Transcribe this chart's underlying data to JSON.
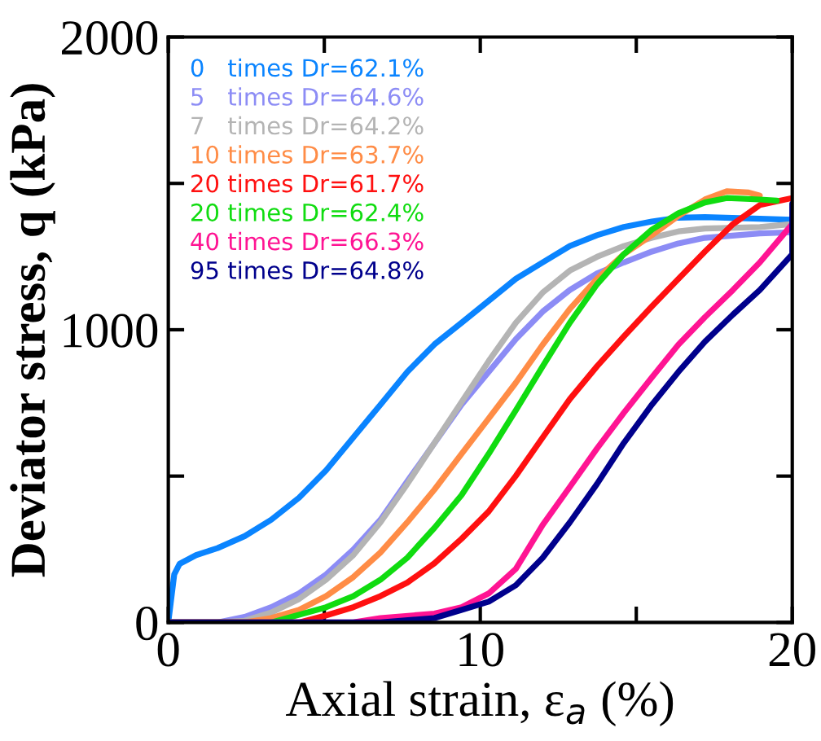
{
  "chart_data": {
    "type": "line",
    "xlabel": "Axial strain, ε$_{a}$ (%)",
    "ylabel": "Deviator stress, q (kPa)",
    "xlim": [
      0,
      20
    ],
    "ylim": [
      0,
      2000
    ],
    "xticks": [
      0,
      {
        "value": 5,
        "label": null
      },
      10,
      {
        "value": 15,
        "label": null
      },
      20
    ],
    "yticks": [
      0,
      {
        "value": 500,
        "label": null
      },
      1000,
      {
        "value": 1500,
        "label": null
      },
      2000
    ],
    "grid": false,
    "legend": "top left",
    "marker": "none",
    "line_style": "solid",
    "series": [
      {
        "name": "0   times Dr=62.1%",
        "color": "#0a84ff",
        "x": [
          0,
          0.19,
          0.36,
          0.89,
          1.58,
          2.45,
          3.3,
          4.19,
          5.06,
          5.93,
          6.8,
          7.66,
          8.53,
          9.4,
          10.27,
          11.14,
          12.0,
          12.87,
          13.74,
          14.6,
          15.5,
          16.35,
          17.2,
          18.96,
          20
        ],
        "values": [
          0,
          164,
          200,
          230,
          254,
          295,
          351,
          426,
          520,
          632,
          744,
          856,
          950,
          1024,
          1099,
          1174,
          1230,
          1286,
          1323,
          1351,
          1370,
          1383,
          1385,
          1379,
          1376
        ]
      },
      {
        "name": "5   times Dr=64.6%",
        "color": "#8c8cf5",
        "x": [
          0,
          1.6,
          2.45,
          3.3,
          4.19,
          5.06,
          5.93,
          6.8,
          7.66,
          8.53,
          9.4,
          10.27,
          11.14,
          12.0,
          12.87,
          13.74,
          14.6,
          15.5,
          16.35,
          17.2,
          18.96,
          20
        ],
        "values": [
          0,
          0,
          19,
          52,
          99,
          164,
          249,
          351,
          482,
          613,
          744,
          856,
          968,
          1062,
          1136,
          1192,
          1230,
          1267,
          1295,
          1314,
          1329,
          1333
        ]
      },
      {
        "name": "7   times Dr=64.2%",
        "color": "#b4b4b4",
        "x": [
          0,
          1.6,
          2.45,
          3.3,
          4.19,
          5.06,
          5.93,
          6.8,
          7.66,
          8.53,
          9.4,
          10.27,
          11.14,
          12.0,
          12.87,
          13.74,
          14.6,
          15.5,
          16.35,
          17.2,
          18.96,
          20
        ],
        "values": [
          0,
          0,
          6,
          34,
          80,
          146,
          230,
          342,
          473,
          613,
          753,
          893,
          1024,
          1127,
          1202,
          1249,
          1286,
          1314,
          1336,
          1346,
          1351,
          1361
        ]
      },
      {
        "name": "10 times Dr=63.7%",
        "color": "#ff8c46",
        "x": [
          0,
          2.45,
          3.3,
          4.19,
          5.06,
          5.93,
          6.8,
          7.66,
          8.53,
          9.4,
          10.27,
          11.14,
          12.0,
          12.87,
          13.74,
          14.6,
          15.5,
          16.35,
          17.2,
          17.9,
          18.6,
          18.96
        ],
        "values": [
          0,
          0,
          15,
          43,
          90,
          155,
          239,
          342,
          454,
          576,
          697,
          819,
          949,
          1071,
          1174,
          1258,
          1323,
          1389,
          1445,
          1473,
          1469,
          1458
        ]
      },
      {
        "name": "20 times Dr=61.7%",
        "color": "#ff1010",
        "x": [
          0,
          4.19,
          5.06,
          5.93,
          6.8,
          7.66,
          8.53,
          9.4,
          10.27,
          11.14,
          12.0,
          12.87,
          13.74,
          14.6,
          15.5,
          16.35,
          17.2,
          18.1,
          18.96,
          20
        ],
        "values": [
          0,
          0,
          24,
          52,
          90,
          136,
          202,
          286,
          379,
          501,
          632,
          763,
          875,
          977,
          1080,
          1174,
          1267,
          1361,
          1426,
          1450
        ]
      },
      {
        "name": "20 times Dr=62.4%",
        "color": "#10dc10",
        "x": [
          0,
          3.3,
          5.06,
          5.93,
          6.8,
          7.66,
          8.53,
          9.4,
          10.27,
          11.14,
          12.0,
          12.87,
          13.74,
          14.6,
          15.5,
          16.35,
          17.2,
          17.9,
          18.96,
          19.5
        ],
        "values": [
          0,
          0,
          52,
          90,
          146,
          221,
          323,
          435,
          576,
          725,
          875,
          1024,
          1155,
          1258,
          1342,
          1398,
          1435,
          1450,
          1445,
          1441
        ]
      },
      {
        "name": "40 times Dr=66.3%",
        "color": "#ff1493",
        "x": [
          0,
          5.93,
          6.8,
          8.53,
          9.4,
          10.27,
          11.14,
          12.0,
          12.87,
          13.74,
          14.6,
          15.5,
          16.35,
          17.2,
          18.1,
          18.96,
          20
        ],
        "values": [
          0,
          0,
          15,
          30,
          52,
          99,
          183,
          333,
          463,
          594,
          716,
          837,
          949,
          1043,
          1136,
          1230,
          1361
        ]
      },
      {
        "name": "95 times Dr=64.8%",
        "color": "#00008c",
        "x": [
          0,
          6.8,
          8.53,
          9.4,
          10.27,
          11.14,
          12.0,
          12.87,
          13.74,
          14.6,
          15.5,
          16.35,
          17.2,
          18.1,
          18.96,
          20,
          20
        ],
        "values": [
          0,
          0,
          15,
          43,
          71,
          127,
          221,
          342,
          473,
          613,
          744,
          856,
          959,
          1052,
          1136,
          1258,
          1430
        ]
      }
    ]
  }
}
